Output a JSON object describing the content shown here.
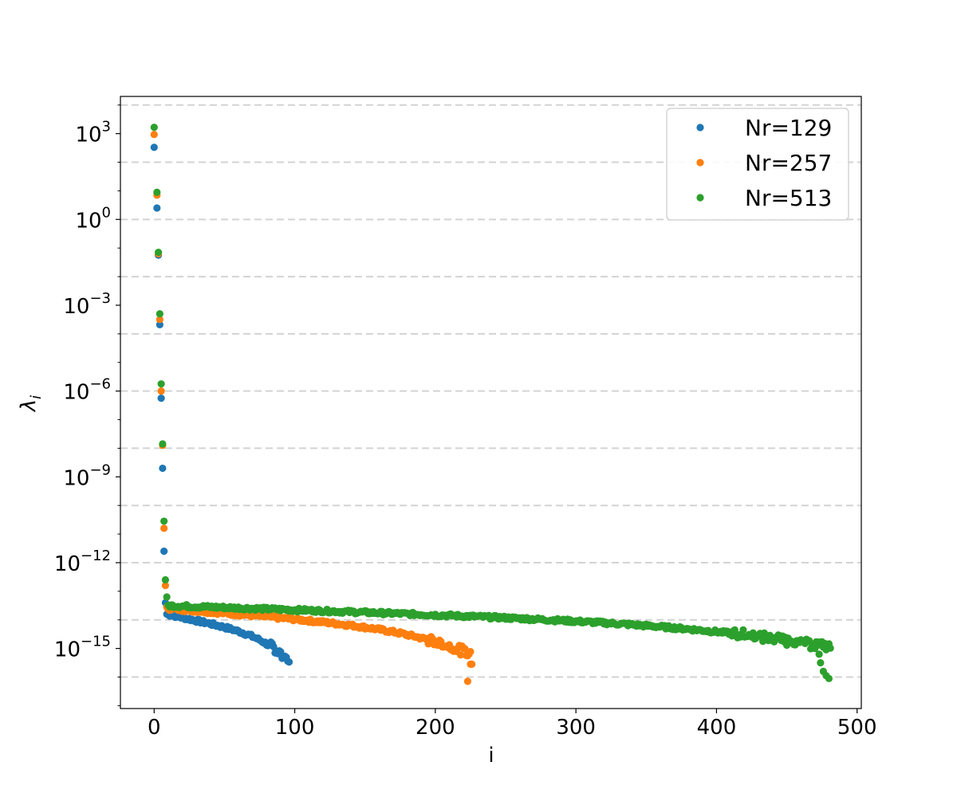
{
  "chart_data": {
    "type": "scatter",
    "title": "",
    "xlabel": "i",
    "ylabel_base": "λ",
    "ylabel_sub": "i",
    "y_scale": "log",
    "xlim": [
      -24,
      503
    ],
    "ylim_log10": [
      -17.1,
      4.3
    ],
    "x_ticks": [
      0,
      100,
      200,
      300,
      400,
      500
    ],
    "x_tick_labels": [
      "0",
      "100",
      "200",
      "300",
      "400",
      "500"
    ],
    "y_major_exponents": [
      3,
      0,
      -3,
      -6,
      -9,
      -12,
      -15
    ],
    "y_tick_base": "10",
    "y_tick_exponents": [
      "3",
      "0",
      "−3",
      "−6",
      "−9",
      "−12",
      "−15"
    ],
    "grid": {
      "axis": "y",
      "style": "dashed",
      "color": "#d3d3d3",
      "levels_log10": [
        4,
        2,
        0,
        -2,
        -4,
        -6,
        -8,
        -10,
        -12,
        -14,
        -16
      ]
    },
    "legend": "top-right",
    "series": [
      {
        "name": "Nr=129",
        "color": "#1f77b4",
        "head_x": [
          0,
          2,
          3,
          4,
          5,
          6,
          7,
          8
        ],
        "head_log10_y": [
          2.52,
          0.4,
          -1.25,
          -3.68,
          -6.25,
          -8.7,
          -11.6,
          -13.4
        ],
        "tail_x_range": [
          9,
          96
        ],
        "tail_log10_y_range": [
          -13.8,
          -15.5
        ],
        "tail_points": 88
      },
      {
        "name": "Nr=257",
        "color": "#ff7f0e",
        "head_x": [
          0,
          2,
          3,
          4,
          5,
          6,
          7,
          8
        ],
        "head_log10_y": [
          2.97,
          0.85,
          -1.2,
          -3.5,
          -6.0,
          -7.9,
          -10.8,
          -12.8
        ],
        "tail_x_range": [
          9,
          225
        ],
        "tail_log10_y_range": [
          -13.6,
          -15.2
        ],
        "tail_points": 217,
        "outliers_x": [
          223,
          225,
          226
        ],
        "outliers_log10_y": [
          -16.15,
          -15.55,
          -15.55
        ]
      },
      {
        "name": "Nr=513",
        "color": "#2ca02c",
        "head_x": [
          0,
          2,
          3,
          4,
          5,
          6,
          7,
          8,
          9
        ],
        "head_log10_y": [
          3.22,
          0.95,
          -1.15,
          -3.3,
          -5.75,
          -7.85,
          -10.55,
          -12.6,
          -13.2
        ],
        "tail_x_range": [
          10,
          481
        ],
        "tail_log10_y_range": [
          -13.5,
          -14.95
        ],
        "tail_points": 472,
        "outliers_x": [
          473,
          474,
          476,
          478,
          480
        ],
        "outliers_log10_y": [
          -15.2,
          -15.5,
          -15.8,
          -15.95,
          -16.05
        ]
      }
    ]
  }
}
